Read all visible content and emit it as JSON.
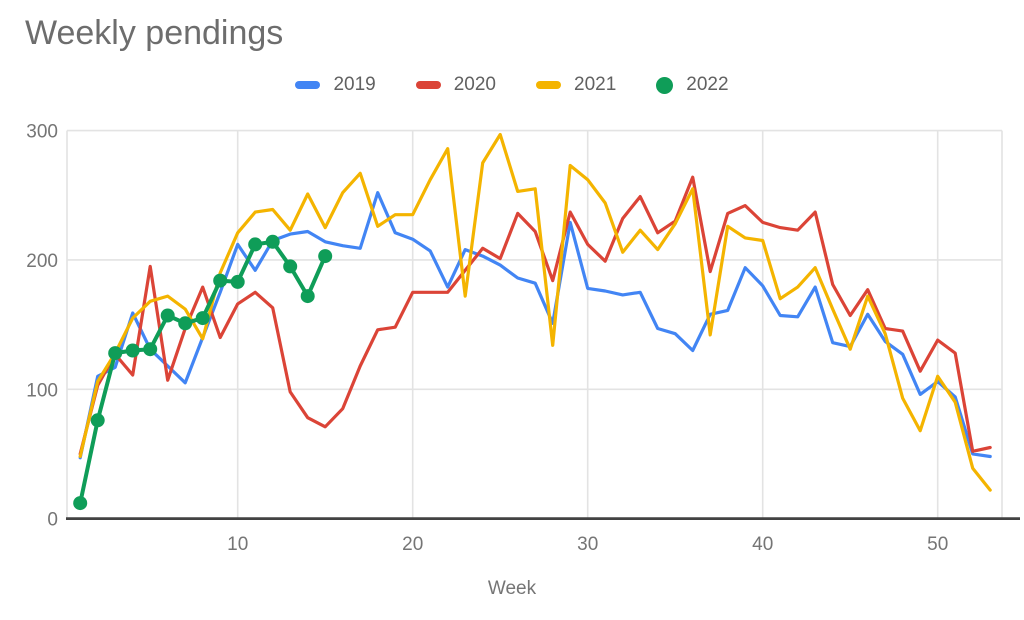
{
  "title": "Weekly pendings",
  "legend": [
    {
      "label": "2019",
      "color": "#4285F4",
      "marker": "dash"
    },
    {
      "label": "2020",
      "color": "#DB4437",
      "marker": "dash"
    },
    {
      "label": "2021",
      "color": "#F4B400",
      "marker": "dash"
    },
    {
      "label": "2022",
      "color": "#0F9D58",
      "marker": "circle"
    }
  ],
  "chart_data": {
    "type": "line",
    "title": "Weekly pendings",
    "xlabel": "Week",
    "ylabel": "",
    "xlim": [
      0,
      54
    ],
    "ylim": [
      0,
      300
    ],
    "x_ticks": [
      10,
      20,
      30,
      40,
      50
    ],
    "y_ticks": [
      0,
      100,
      200,
      300
    ],
    "grid": true,
    "legend_position": "top",
    "x_unit": "week number, weeks 1-53",
    "series": [
      {
        "name": "2019",
        "color": "#4285F4",
        "marker": false,
        "values": [
          47,
          110,
          117,
          159,
          131,
          118,
          105,
          140,
          175,
          212,
          192,
          215,
          220,
          222,
          214,
          211,
          209,
          252,
          221,
          216,
          207,
          179,
          208,
          203,
          196,
          186,
          182,
          151,
          229,
          178,
          176,
          173,
          175,
          147,
          143,
          130,
          158,
          161,
          194,
          180,
          157,
          156,
          179,
          136,
          133,
          158,
          137,
          127,
          96,
          106,
          94,
          50,
          48
        ]
      },
      {
        "name": "2020",
        "color": "#DB4437",
        "marker": false,
        "values": [
          50,
          103,
          127,
          111,
          195,
          107,
          147,
          179,
          140,
          166,
          175,
          163,
          98,
          78,
          71,
          85,
          118,
          146,
          148,
          175,
          175,
          175,
          192,
          209,
          201,
          236,
          222,
          184,
          237,
          212,
          199,
          232,
          249,
          221,
          230,
          264,
          191,
          236,
          242,
          229,
          225,
          223,
          237,
          181,
          157,
          177,
          147,
          145,
          114,
          138,
          128,
          52,
          55
        ]
      },
      {
        "name": "2021",
        "color": "#F4B400",
        "marker": false,
        "values": [
          48,
          106,
          128,
          155,
          168,
          172,
          162,
          139,
          190,
          221,
          237,
          239,
          223,
          251,
          225,
          252,
          267,
          226,
          235,
          235,
          262,
          286,
          172,
          275,
          297,
          253,
          255,
          134,
          273,
          262,
          244,
          206,
          223,
          208,
          228,
          255,
          142,
          226,
          217,
          215,
          170,
          179,
          194,
          162,
          131,
          172,
          143,
          93,
          68,
          110,
          90,
          39,
          22
        ]
      },
      {
        "name": "2022",
        "color": "#0F9D58",
        "marker": true,
        "values": [
          12,
          76,
          128,
          130,
          131,
          157,
          151,
          155,
          184,
          183,
          212,
          214,
          195,
          172,
          203
        ]
      }
    ]
  },
  "colors": {
    "grid": "#e3e3e3",
    "axis": "#424242",
    "tick_text": "#757575",
    "title_text": "#6d6d6d",
    "legend_text": "#616161"
  }
}
